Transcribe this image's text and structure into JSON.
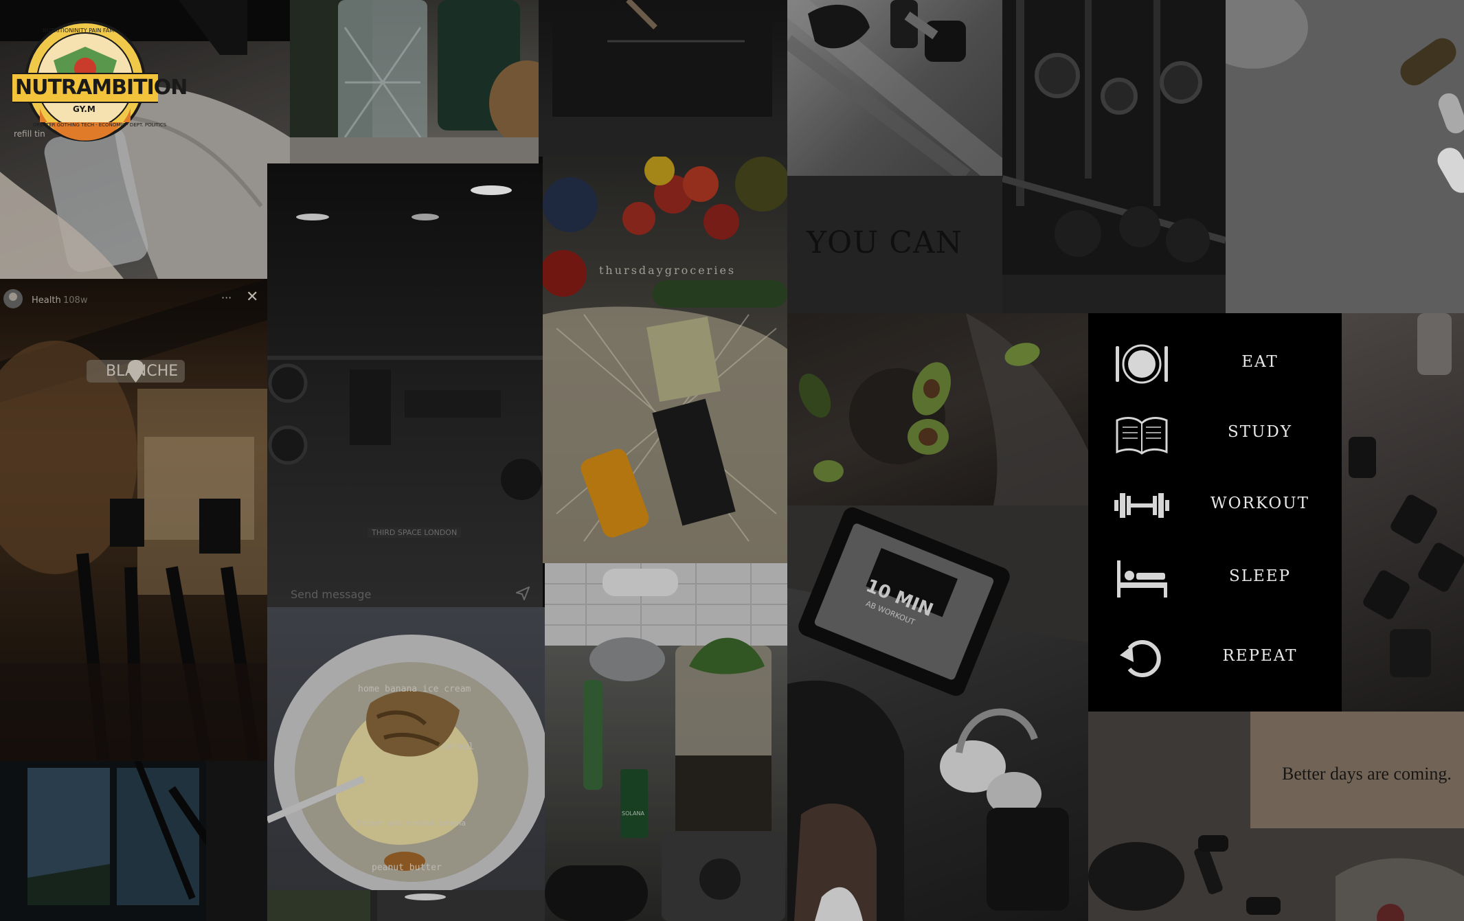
{
  "logo": {
    "top_ring": "NUTRITIONINITY PAIN FAM",
    "wordmark": "NUTRAMBITION",
    "sub": "GY.M",
    "bottom_ring": "GREATER GOTHING TECH · ECONOMIC · DEPT. POLITICS"
  },
  "shoe_tile": {
    "caption": "refill tin"
  },
  "health_story": {
    "account": "Health",
    "time": "108w",
    "more": "···",
    "close": "✕",
    "location": "BLANCHE"
  },
  "gym_story": {
    "tag": "THIRD SPACE LONDON",
    "message_placeholder": "Send message"
  },
  "grocery_tile": {
    "caption": "thursdaygroceries"
  },
  "youcan_tile": {
    "text": "YOU CAN"
  },
  "icecream_tile": {
    "title": "home banana ice cream",
    "cereal": "cereal",
    "frozen": "frozen and mashed banana",
    "pb": "peanut butter"
  },
  "tablet_tile": {
    "screen_title": "10 MIN",
    "screen_sub": "AB WORKOUT"
  },
  "routine_list": [
    {
      "label": "EAT",
      "icon": "plate-cutlery-icon"
    },
    {
      "label": "STUDY",
      "icon": "open-book-icon"
    },
    {
      "label": "WORKOUT",
      "icon": "dumbbell-icon"
    },
    {
      "label": "SLEEP",
      "icon": "bed-icon"
    },
    {
      "label": "REPEAT",
      "icon": "repeat-arrow-icon"
    }
  ],
  "better_tile": {
    "text": "Better days are coming."
  },
  "blender_tile": {
    "bottle_label": "SOLANA"
  }
}
